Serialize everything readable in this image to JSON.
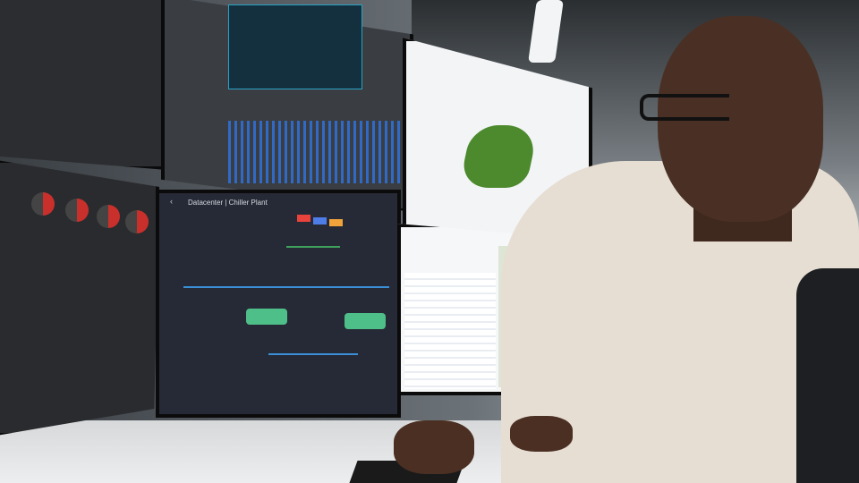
{
  "chiller_screen": {
    "breadcrumb": "Datacenter | Chiller Plant"
  },
  "colors": {
    "accent_blue": "#2f6fd4",
    "chiller_green": "#4fbf8a",
    "alarm_red": "#c9302c"
  },
  "icons": [
    "back-arrow-icon"
  ]
}
